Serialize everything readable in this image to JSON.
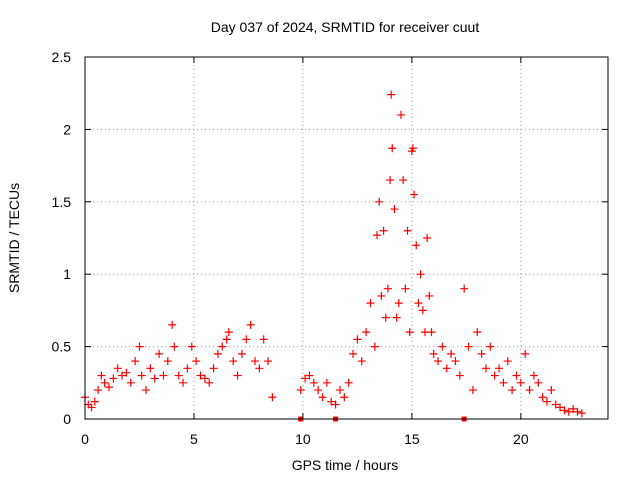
{
  "chart_data": {
    "type": "scatter",
    "title": "Day 037 of 2024, SRMTID for receiver cuut",
    "xlabel": "GPS time / hours",
    "ylabel": "SRMTID / TECUs",
    "xlim": [
      0,
      24
    ],
    "ylim": [
      0,
      2.5
    ],
    "xticks": [
      0,
      5,
      10,
      15,
      20
    ],
    "yticks": [
      0,
      0.5,
      1,
      1.5,
      2,
      2.5
    ],
    "xtick_labels": [
      "0",
      "5",
      "10",
      "15",
      "20"
    ],
    "ytick_labels": [
      "0",
      "0.5",
      "1",
      "1.5",
      "2",
      "2.5"
    ],
    "grid": true,
    "series": [
      {
        "name": "SRMTID",
        "marker": "plus",
        "color": "#ff0000",
        "x": [
          0.0,
          0.15,
          0.3,
          0.45,
          0.6,
          0.75,
          0.9,
          1.1,
          1.3,
          1.5,
          1.7,
          1.9,
          2.1,
          2.3,
          2.5,
          2.6,
          2.8,
          3.0,
          3.2,
          3.4,
          3.6,
          3.8,
          4.0,
          4.1,
          4.3,
          4.5,
          4.7,
          4.9,
          5.1,
          5.3,
          5.5,
          5.7,
          5.9,
          6.1,
          6.3,
          6.5,
          6.6,
          6.8,
          7.0,
          7.2,
          7.4,
          7.6,
          7.8,
          8.0,
          8.2,
          8.4,
          8.6,
          9.9,
          10.1,
          10.3,
          10.5,
          10.7,
          10.9,
          11.1,
          11.3,
          11.5,
          11.7,
          11.9,
          12.1,
          12.3,
          12.5,
          12.7,
          12.9,
          13.1,
          13.3,
          13.4,
          13.5,
          13.6,
          13.7,
          13.8,
          13.9,
          14.0,
          14.05,
          14.1,
          14.2,
          14.3,
          14.4,
          14.5,
          14.6,
          14.7,
          14.8,
          14.9,
          15.0,
          15.05,
          15.1,
          15.2,
          15.3,
          15.4,
          15.5,
          15.6,
          15.7,
          15.8,
          15.9,
          16.0,
          16.2,
          16.4,
          16.6,
          16.8,
          17.0,
          17.2,
          17.4,
          17.6,
          17.8,
          18.0,
          18.2,
          18.4,
          18.6,
          18.8,
          19.0,
          19.2,
          19.4,
          19.6,
          19.8,
          20.0,
          20.2,
          20.4,
          20.6,
          20.8,
          21.0,
          21.2,
          21.4,
          21.6,
          21.8,
          22.0,
          22.2,
          22.4,
          22.6,
          22.8,
          9.9,
          11.5,
          17.4
        ],
        "y": [
          0.15,
          0.1,
          0.08,
          0.12,
          0.2,
          0.3,
          0.25,
          0.22,
          0.28,
          0.35,
          0.3,
          0.32,
          0.25,
          0.4,
          0.5,
          0.3,
          0.2,
          0.35,
          0.28,
          0.45,
          0.3,
          0.4,
          0.65,
          0.5,
          0.3,
          0.25,
          0.35,
          0.5,
          0.4,
          0.3,
          0.28,
          0.25,
          0.35,
          0.45,
          0.5,
          0.55,
          0.6,
          0.4,
          0.3,
          0.45,
          0.55,
          0.65,
          0.4,
          0.35,
          0.55,
          0.4,
          0.15,
          0.2,
          0.28,
          0.3,
          0.25,
          0.2,
          0.15,
          0.25,
          0.12,
          0.1,
          0.2,
          0.15,
          0.25,
          0.45,
          0.55,
          0.4,
          0.6,
          0.8,
          0.5,
          1.27,
          1.5,
          0.85,
          1.3,
          0.7,
          0.9,
          1.65,
          2.24,
          1.87,
          1.45,
          0.7,
          0.8,
          2.1,
          1.65,
          0.9,
          1.3,
          0.6,
          1.85,
          1.87,
          1.55,
          1.2,
          0.8,
          1.0,
          0.75,
          0.6,
          1.25,
          0.85,
          0.6,
          0.45,
          0.4,
          0.5,
          0.35,
          0.45,
          0.4,
          0.3,
          0.9,
          0.5,
          0.2,
          0.6,
          0.45,
          0.35,
          0.5,
          0.3,
          0.35,
          0.25,
          0.4,
          0.2,
          0.3,
          0.25,
          0.45,
          0.2,
          0.3,
          0.25,
          0.15,
          0.12,
          0.2,
          0.1,
          0.08,
          0.06,
          0.05,
          0.07,
          0.05,
          0.04,
          0.0,
          0.0,
          0.0
        ]
      }
    ]
  }
}
